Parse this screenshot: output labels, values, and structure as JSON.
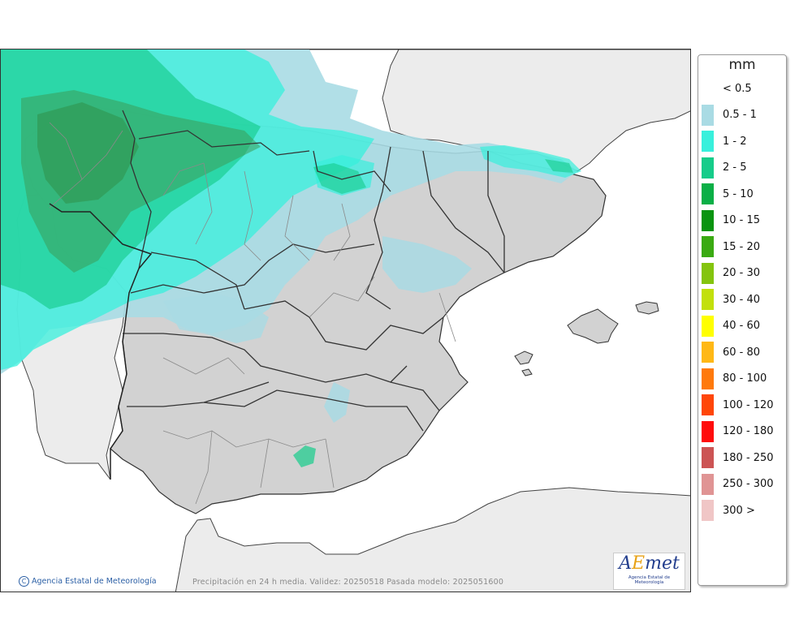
{
  "legend": {
    "unit": "mm",
    "items": [
      {
        "label": "< 0.5",
        "color": ""
      },
      {
        "label": "0.5 - 1",
        "color": "#a9dbe4"
      },
      {
        "label": "1 - 2",
        "color": "#38f0dc"
      },
      {
        "label": "2 - 5",
        "color": "#16cc8a"
      },
      {
        "label": "5 - 10",
        "color": "#0aaf46"
      },
      {
        "label": "10 - 15",
        "color": "#0a9410"
      },
      {
        "label": "15 - 20",
        "color": "#3aaa12"
      },
      {
        "label": "20 - 30",
        "color": "#84c40e"
      },
      {
        "label": "30 - 40",
        "color": "#c2e00c"
      },
      {
        "label": "40 - 60",
        "color": "#ffff00"
      },
      {
        "label": "60 - 80",
        "color": "#ffb816"
      },
      {
        "label": "80 - 100",
        "color": "#ff7a0c"
      },
      {
        "label": "100 - 120",
        "color": "#ff4608"
      },
      {
        "label": "120 - 180",
        "color": "#ff0c0c"
      },
      {
        "label": "180 - 250",
        "color": "#cc5454"
      },
      {
        "label": "250 - 300",
        "color": "#e09494"
      },
      {
        "label": "300 >",
        "color": "#f0c6c6"
      }
    ]
  },
  "map": {
    "credit": "Agencia Estatal de Meteorología",
    "copyright_symbol": "C",
    "validity": "Precipitación en 24 h media. Validez: 20250518 Pasada modelo: 2025051600",
    "logo_word_a": "A",
    "logo_word_e": "E",
    "logo_word_rest": "met",
    "logo_sub": "Agencia Estatal de Meteorología"
  }
}
